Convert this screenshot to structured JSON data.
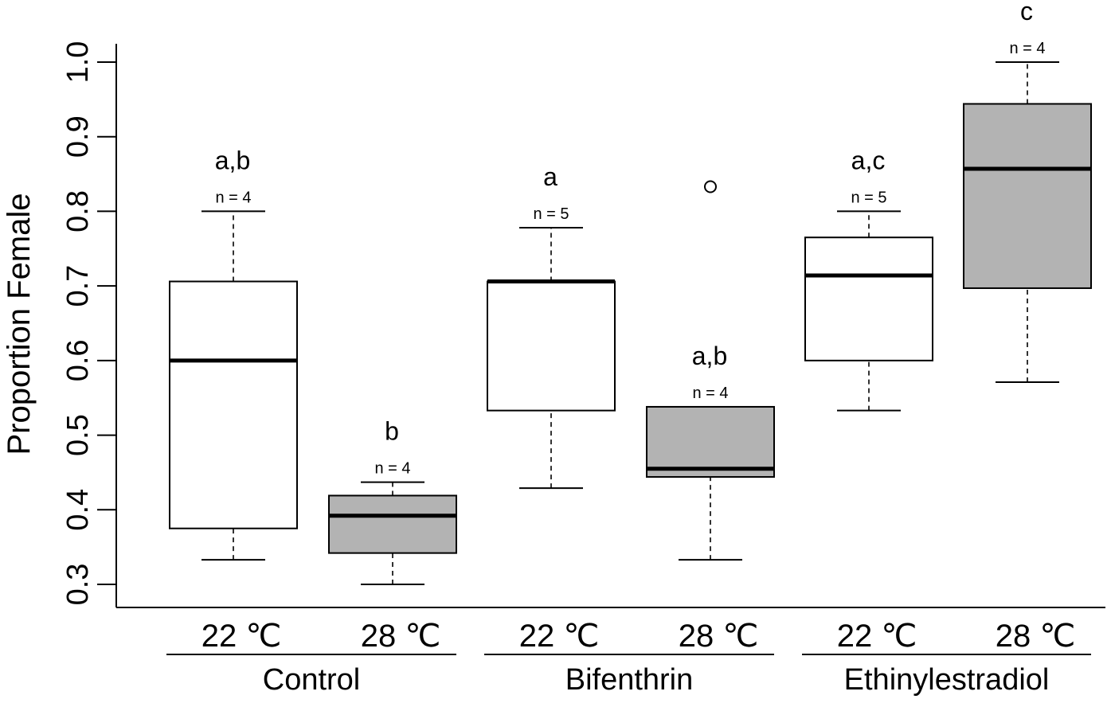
{
  "chart_data": {
    "type": "boxplot",
    "ylabel": "Proportion Female",
    "ylim": [
      0.3,
      1.0
    ],
    "yticks": [
      "0.3",
      "0.4",
      "0.5",
      "0.6",
      "0.7",
      "0.8",
      "0.9",
      "1.0"
    ],
    "grid": false,
    "groups": [
      {
        "name": "Control",
        "first": 0,
        "last": 1
      },
      {
        "name": "Bifenthrin",
        "first": 2,
        "last": 3
      },
      {
        "name": "Ethinylestradiol",
        "first": 4,
        "last": 5
      }
    ],
    "boxes": [
      {
        "label": "22 ℃",
        "fill": "#ffffff",
        "min": 0.333,
        "q1": 0.375,
        "median": 0.6,
        "q3": 0.706,
        "max": 0.8,
        "outliers": [],
        "n": "n = 4",
        "letter": "a,b"
      },
      {
        "label": "28 ℃",
        "fill": "#b3b3b3",
        "min": 0.3,
        "q1": 0.342,
        "median": 0.392,
        "q3": 0.419,
        "max": 0.437,
        "outliers": [],
        "n": "n = 4",
        "letter": "b"
      },
      {
        "label": "22 ℃",
        "fill": "#ffffff",
        "min": 0.429,
        "q1": 0.533,
        "median": 0.706,
        "q3": 0.706,
        "max": 0.778,
        "outliers": [],
        "n": "n = 5",
        "letter": "a"
      },
      {
        "label": "28 ℃",
        "fill": "#b3b3b3",
        "min": 0.333,
        "q1": 0.444,
        "median": 0.455,
        "q3": 0.538,
        "max": 0.538,
        "outliers": [
          0.833
        ],
        "n": "n = 4",
        "letter": "a,b"
      },
      {
        "label": "22 ℃",
        "fill": "#ffffff",
        "min": 0.533,
        "q1": 0.6,
        "median": 0.714,
        "q3": 0.765,
        "max": 0.8,
        "outliers": [],
        "n": "n = 5",
        "letter": "a,c"
      },
      {
        "label": "28 ℃",
        "fill": "#b3b3b3",
        "min": 0.571,
        "q1": 0.697,
        "median": 0.857,
        "q3": 0.944,
        "max": 1.0,
        "outliers": [],
        "n": "n = 4",
        "letter": "c"
      }
    ]
  }
}
